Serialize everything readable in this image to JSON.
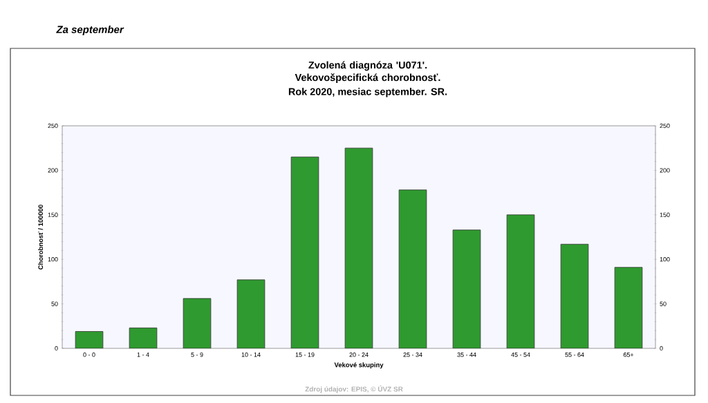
{
  "chart_data": {
    "type": "bar",
    "title": "Zvolená diagnóza 'U071'. Vekovošpecifická chorobnosť.",
    "subtitle": "Rok 2020, mesiac september. SR.",
    "xlabel": "Vekové skupiny",
    "ylabel": "Chorobnosť / 100000",
    "annotations": [
      "Za september",
      "Zdroj údajov: EPIS, © ÚVZ SR"
    ],
    "categories": [
      "0 - 0",
      "1 - 4",
      "5 - 9",
      "10 - 14",
      "15 - 19",
      "20 - 24",
      "25 - 34",
      "35 - 44",
      "45 - 54",
      "55 - 64",
      "65+"
    ],
    "values": [
      19,
      23,
      56,
      77,
      215,
      225,
      178,
      133,
      150,
      117,
      91
    ],
    "color": "#2f9a2f",
    "ylim": [
      0,
      250
    ],
    "yticks": [
      0,
      50,
      100,
      150,
      200,
      250
    ],
    "y2lim": [
      0,
      250
    ],
    "y2ticks": [
      0,
      50,
      100,
      150,
      200,
      250
    ],
    "grid": false
  }
}
